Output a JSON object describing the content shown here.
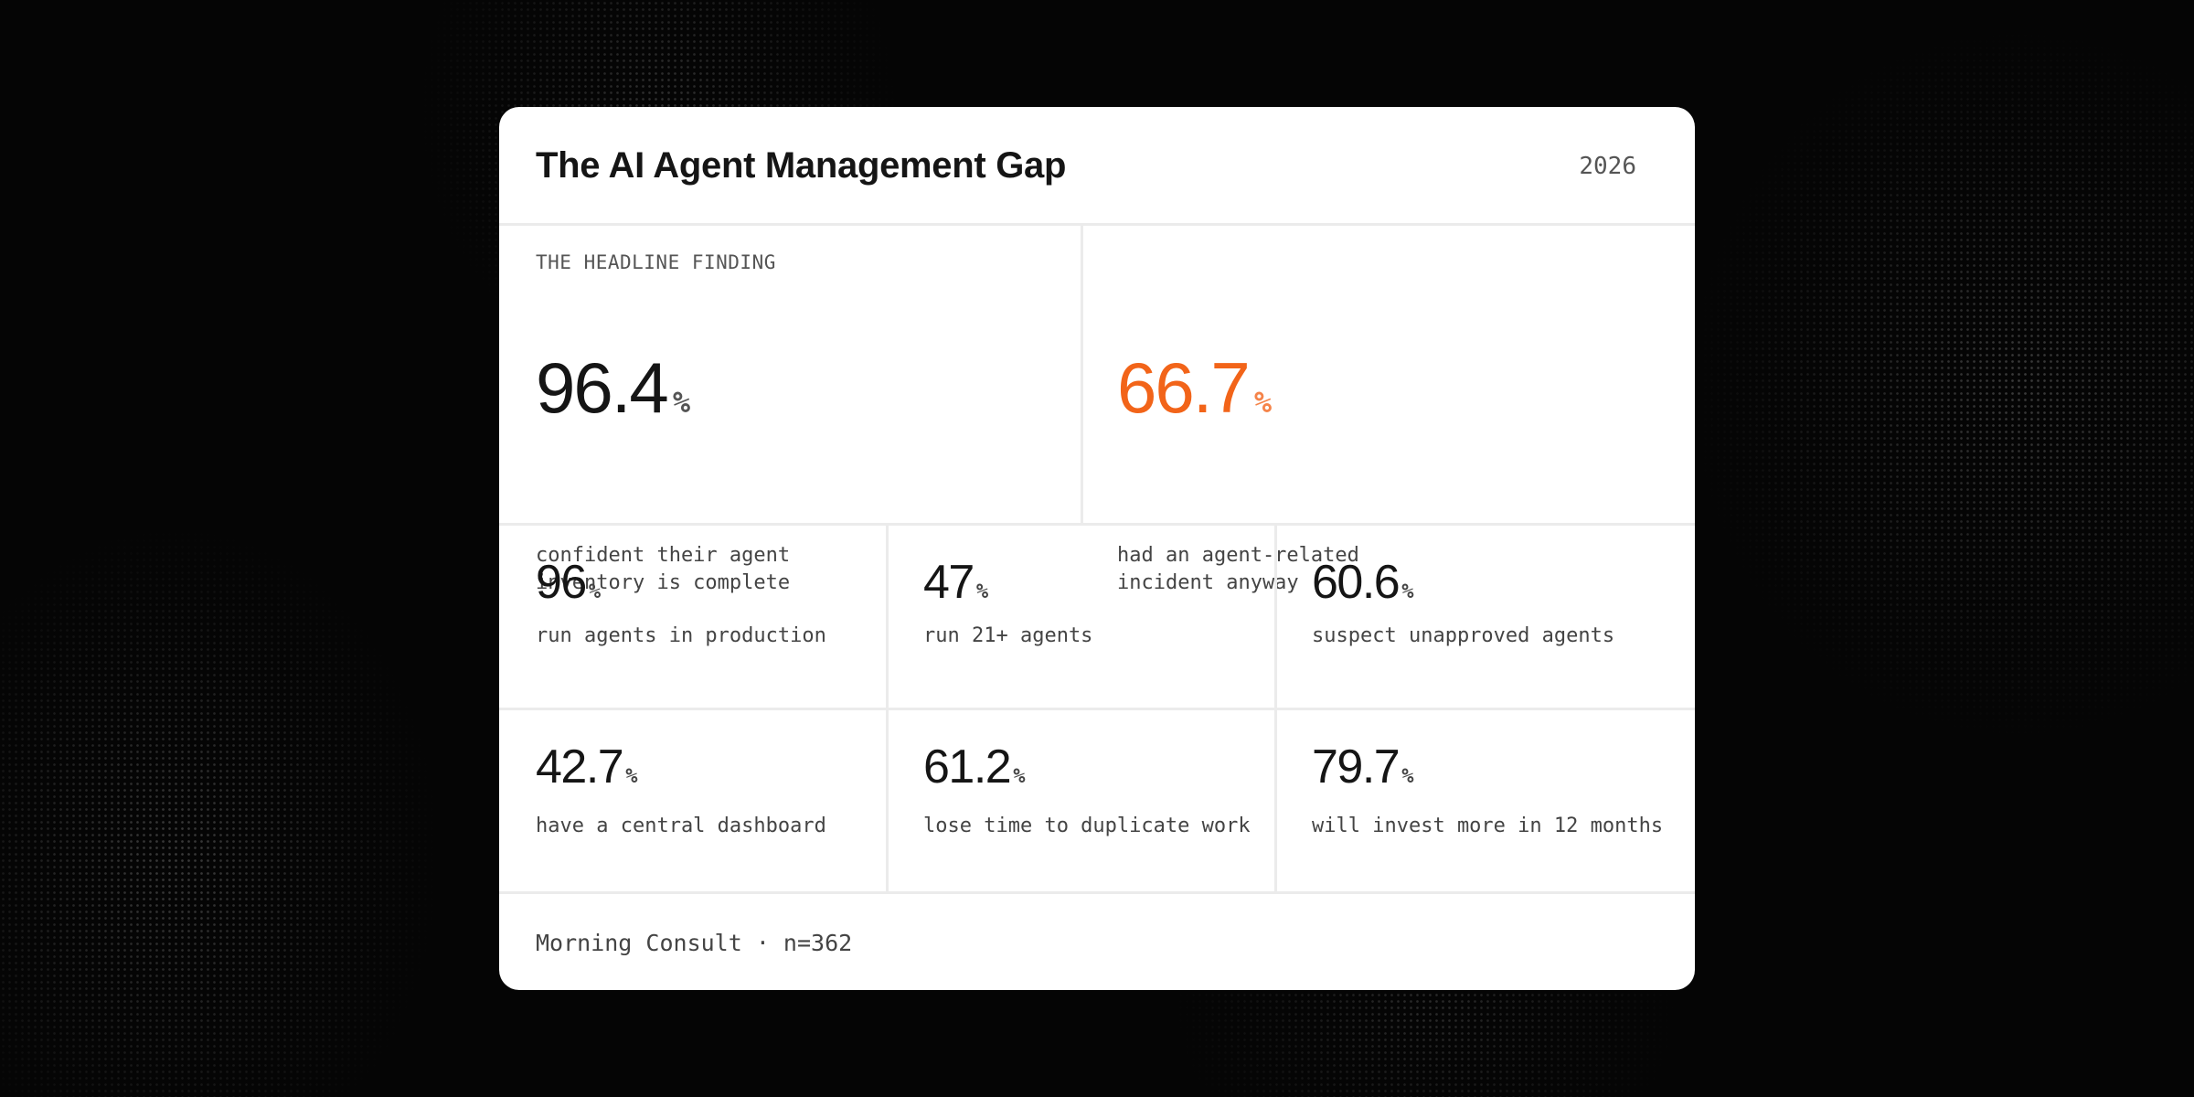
{
  "card": {
    "title": "The AI Agent Management Gap",
    "year": "2026",
    "eyebrow": "THE HEADLINE FINDING",
    "headline": [
      {
        "value": "96.4",
        "unit": "%",
        "line1": "confident their agent",
        "line2": "inventory is complete"
      },
      {
        "value": "66.7",
        "unit": "%",
        "line1": "had an agent-related",
        "line2": "incident anyway"
      }
    ],
    "stats": [
      {
        "value": "96",
        "unit": "%",
        "label": "run agents in production"
      },
      {
        "value": "47",
        "unit": "%",
        "label": "run 21+ agents"
      },
      {
        "value": "60.6",
        "unit": "%",
        "label": "suspect unapproved agents"
      },
      {
        "value": "42.7",
        "unit": "%",
        "label": "have a central dashboard"
      },
      {
        "value": "61.2",
        "unit": "%",
        "label": "lose time to duplicate work"
      },
      {
        "value": "79.7",
        "unit": "%",
        "label": "will invest more in 12 months"
      }
    ],
    "footer": "Morning Consult · n=362"
  },
  "colors": {
    "accent": "#f26419",
    "background": "#050505",
    "card": "#ffffff"
  }
}
